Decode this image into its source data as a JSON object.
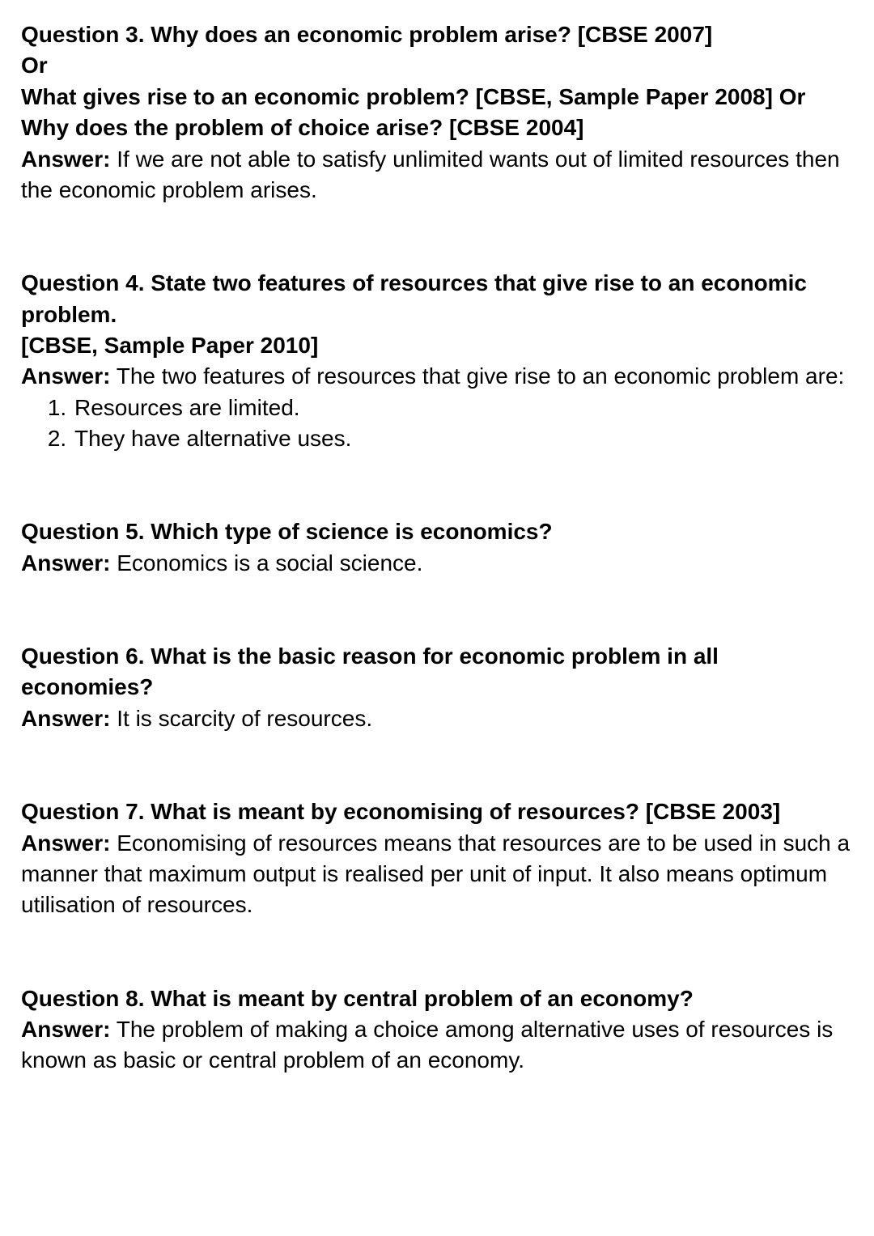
{
  "qa": [
    {
      "question_lines": [
        "Question 3. Why does an economic problem arise? [CBSE 2007]",
        "Or",
        "What gives rise to an economic problem? [CBSE, Sample Paper 2008] Or",
        "Why does the problem of choice arise? [CBSE 2004]"
      ],
      "answer_label": "Answer:",
      "answer_text": "If we are not able to satisfy unlimited wants out of limited resources then the economic problem arises."
    },
    {
      "question_lines": [
        "Question 4. State two features of resources that give rise to an economic problem.",
        "[CBSE, Sample Paper 2010]"
      ],
      "answer_label": "Answer:",
      "answer_text": "The two features of resources that give rise to an economic problem are:",
      "answer_points": [
        "Resources are limited.",
        "They have alternative uses."
      ]
    },
    {
      "question_lines": [
        "Question 5. Which type of science is economics?"
      ],
      "answer_label": "Answer:",
      "answer_text": "Economics is a social science."
    },
    {
      "question_lines": [
        "Question 6. What is the basic reason for economic problem in all economies?"
      ],
      "answer_label": "Answer:",
      "answer_text": "It is scarcity of resources."
    },
    {
      "question_lines": [
        "Question 7. What is meant by economising of resources? [CBSE 2003]"
      ],
      "answer_label": "Answer:",
      "answer_text": "Economising of resources means that resources are to be used in such a manner that maximum output is realised per unit of input. It also means optimum utilisation of resources."
    },
    {
      "question_lines": [
        "Question 8. What is meant by central problem of an economy?"
      ],
      "answer_label": "Answer:",
      "answer_text": "The problem of making a choice among alternative uses of resources is known as basic or central problem of an economy."
    }
  ]
}
